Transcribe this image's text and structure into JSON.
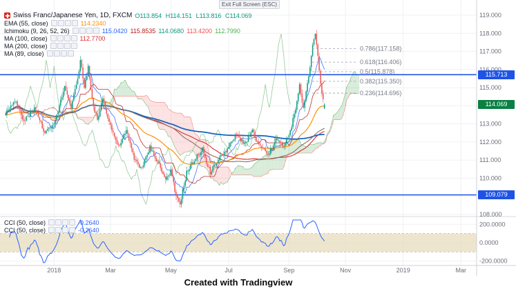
{
  "topbar": {
    "exit_fullscreen": "Exit Full Screen (ESC)"
  },
  "caption": "Created with Tradingview",
  "colors": {
    "up": "#089981",
    "down": "#ef5350",
    "line_blue": "#1e53e5",
    "badge_green": "#0a8043",
    "cloud_green": "#43a047",
    "cloud_red": "#ef5350",
    "cci_line": "#2962ff",
    "band_fill": "#e7dcbd",
    "text_gray": "#787b86"
  },
  "legend": {
    "symbol": {
      "title": "Swiss Franc/Japanese Yen, 1D, FXCM",
      "ohlc": {
        "open": "O113.854",
        "high": "H114.151",
        "low": "L113.816",
        "close": "C114.069"
      }
    },
    "indicators": [
      {
        "label": "EMA (55, close)",
        "values": [
          {
            "text": "114.2340",
            "color": "#ff9100"
          }
        ]
      },
      {
        "label": "Ichimoku (9, 26, 52, 26)",
        "values": [
          {
            "text": "115.0420",
            "color": "#2962ff"
          },
          {
            "text": "115.8535",
            "color": "#b71c1c"
          },
          {
            "text": "114.0680",
            "color": "#089981"
          },
          {
            "text": "113.4200",
            "color": "#ef5350"
          },
          {
            "text": "112.7990",
            "color": "#4caf50"
          }
        ]
      },
      {
        "label": "MA (100, close)",
        "values": [
          {
            "text": "112.7700",
            "color": "#d32f2f"
          }
        ]
      },
      {
        "label": "MA (200, close)",
        "values": []
      },
      {
        "label": "MA (89, close)",
        "values": []
      }
    ],
    "cci_rows": [
      {
        "label": "CCI (50, close)",
        "values": [
          {
            "text": "-0.2640",
            "color": "#2962ff"
          }
        ]
      },
      {
        "label": "CCI (50, close)",
        "values": [
          {
            "text": "-0.2640",
            "color": "#2962ff"
          }
        ]
      }
    ]
  },
  "chart_data": {
    "type": "candlestick",
    "symbol": "Swiss Franc/Japanese Yen",
    "interval": "1D",
    "exchange": "FXCM",
    "last_candle": {
      "o": 113.854,
      "h": 114.151,
      "l": 113.816,
      "c": 114.069
    },
    "n_candles": 244,
    "noise": 0.26,
    "price_path_anchors": [
      [
        0,
        113.6
      ],
      [
        8,
        114.2
      ],
      [
        14,
        113.1
      ],
      [
        22,
        113.9
      ],
      [
        30,
        112.5
      ],
      [
        37,
        112.9
      ],
      [
        45,
        115.1
      ],
      [
        50,
        114.0
      ],
      [
        55,
        115.4
      ],
      [
        57,
        116.6
      ],
      [
        60,
        115.0
      ],
      [
        63,
        116.1
      ],
      [
        66,
        114.3
      ],
      [
        70,
        113.2
      ],
      [
        74,
        114.4
      ],
      [
        80,
        112.9
      ],
      [
        86,
        111.7
      ],
      [
        92,
        112.6
      ],
      [
        98,
        111.1
      ],
      [
        104,
        110.5
      ],
      [
        110,
        111.7
      ],
      [
        116,
        110.9
      ],
      [
        122,
        109.9
      ],
      [
        126,
        110.4
      ],
      [
        130,
        108.9
      ],
      [
        133,
        108.6
      ],
      [
        138,
        110.3
      ],
      [
        144,
        111.0
      ],
      [
        150,
        111.6
      ],
      [
        156,
        110.3
      ],
      [
        162,
        111.0
      ],
      [
        170,
        111.7
      ],
      [
        176,
        112.4
      ],
      [
        182,
        111.9
      ],
      [
        188,
        112.6
      ],
      [
        194,
        111.7
      ],
      [
        200,
        111.3
      ],
      [
        206,
        112.1
      ],
      [
        212,
        111.8
      ],
      [
        216,
        112.3
      ],
      [
        220,
        113.5
      ],
      [
        224,
        115.1
      ],
      [
        227,
        113.8
      ],
      [
        231,
        115.7
      ],
      [
        234,
        117.3
      ],
      [
        236,
        117.9
      ],
      [
        238,
        116.8
      ],
      [
        240,
        115.3
      ],
      [
        242,
        114.3
      ],
      [
        243,
        114.069
      ]
    ],
    "overlays": {
      "ichimoku": {
        "params": [
          9,
          26,
          52,
          26
        ]
      },
      "mas": [
        {
          "type": "ema",
          "period": 55,
          "color": "#ff9100",
          "width": 1.2
        },
        {
          "type": "sma",
          "period": 100,
          "color": "#d32f2f",
          "width": 1.1
        },
        {
          "type": "sma",
          "period": 200,
          "color": "#1565c0",
          "width": 1.8
        },
        {
          "type": "sma",
          "period": 89,
          "color": "#8d6e63",
          "width": 1.1
        }
      ],
      "horizontal_lines": [
        {
          "price": 115.713
        },
        {
          "price": 109.079
        }
      ],
      "fib_levels": [
        {
          "label": "0.786(117.158)",
          "price": 117.158
        },
        {
          "label": "0.618(116.406)",
          "price": 116.406
        },
        {
          "label": "0.5(115.878)",
          "price": 115.878
        },
        {
          "label": "0.382(115.350)",
          "price": 115.35
        },
        {
          "label": "0.236(114.696)",
          "price": 114.696
        }
      ]
    },
    "y_axis": {
      "ticks": [
        119,
        118,
        117,
        116,
        115,
        113,
        112,
        111,
        110,
        108
      ],
      "badges": [
        {
          "text": "115.713",
          "price": 115.713,
          "bg": "#1e53e5"
        },
        {
          "text": "114.069",
          "price": 114.069,
          "bg": "#0a8043"
        },
        {
          "text": "109.079",
          "price": 109.079,
          "bg": "#1e53e5"
        }
      ]
    },
    "x_axis": {
      "labels": [
        {
          "text": "2018",
          "t": 37
        },
        {
          "text": "Mar",
          "t": 80
        },
        {
          "text": "May",
          "t": 126
        },
        {
          "text": "Jul",
          "t": 170
        },
        {
          "text": "Sep",
          "t": 216
        },
        {
          "text": "Nov",
          "t": 259
        },
        {
          "text": "2019",
          "t": 303
        },
        {
          "text": "Mar",
          "t": 347
        }
      ]
    },
    "cci_pane": {
      "indicator": "CCI (50, close)",
      "period": 50,
      "band": [
        -100,
        100
      ],
      "ticks": [
        200,
        0,
        -200
      ]
    }
  }
}
